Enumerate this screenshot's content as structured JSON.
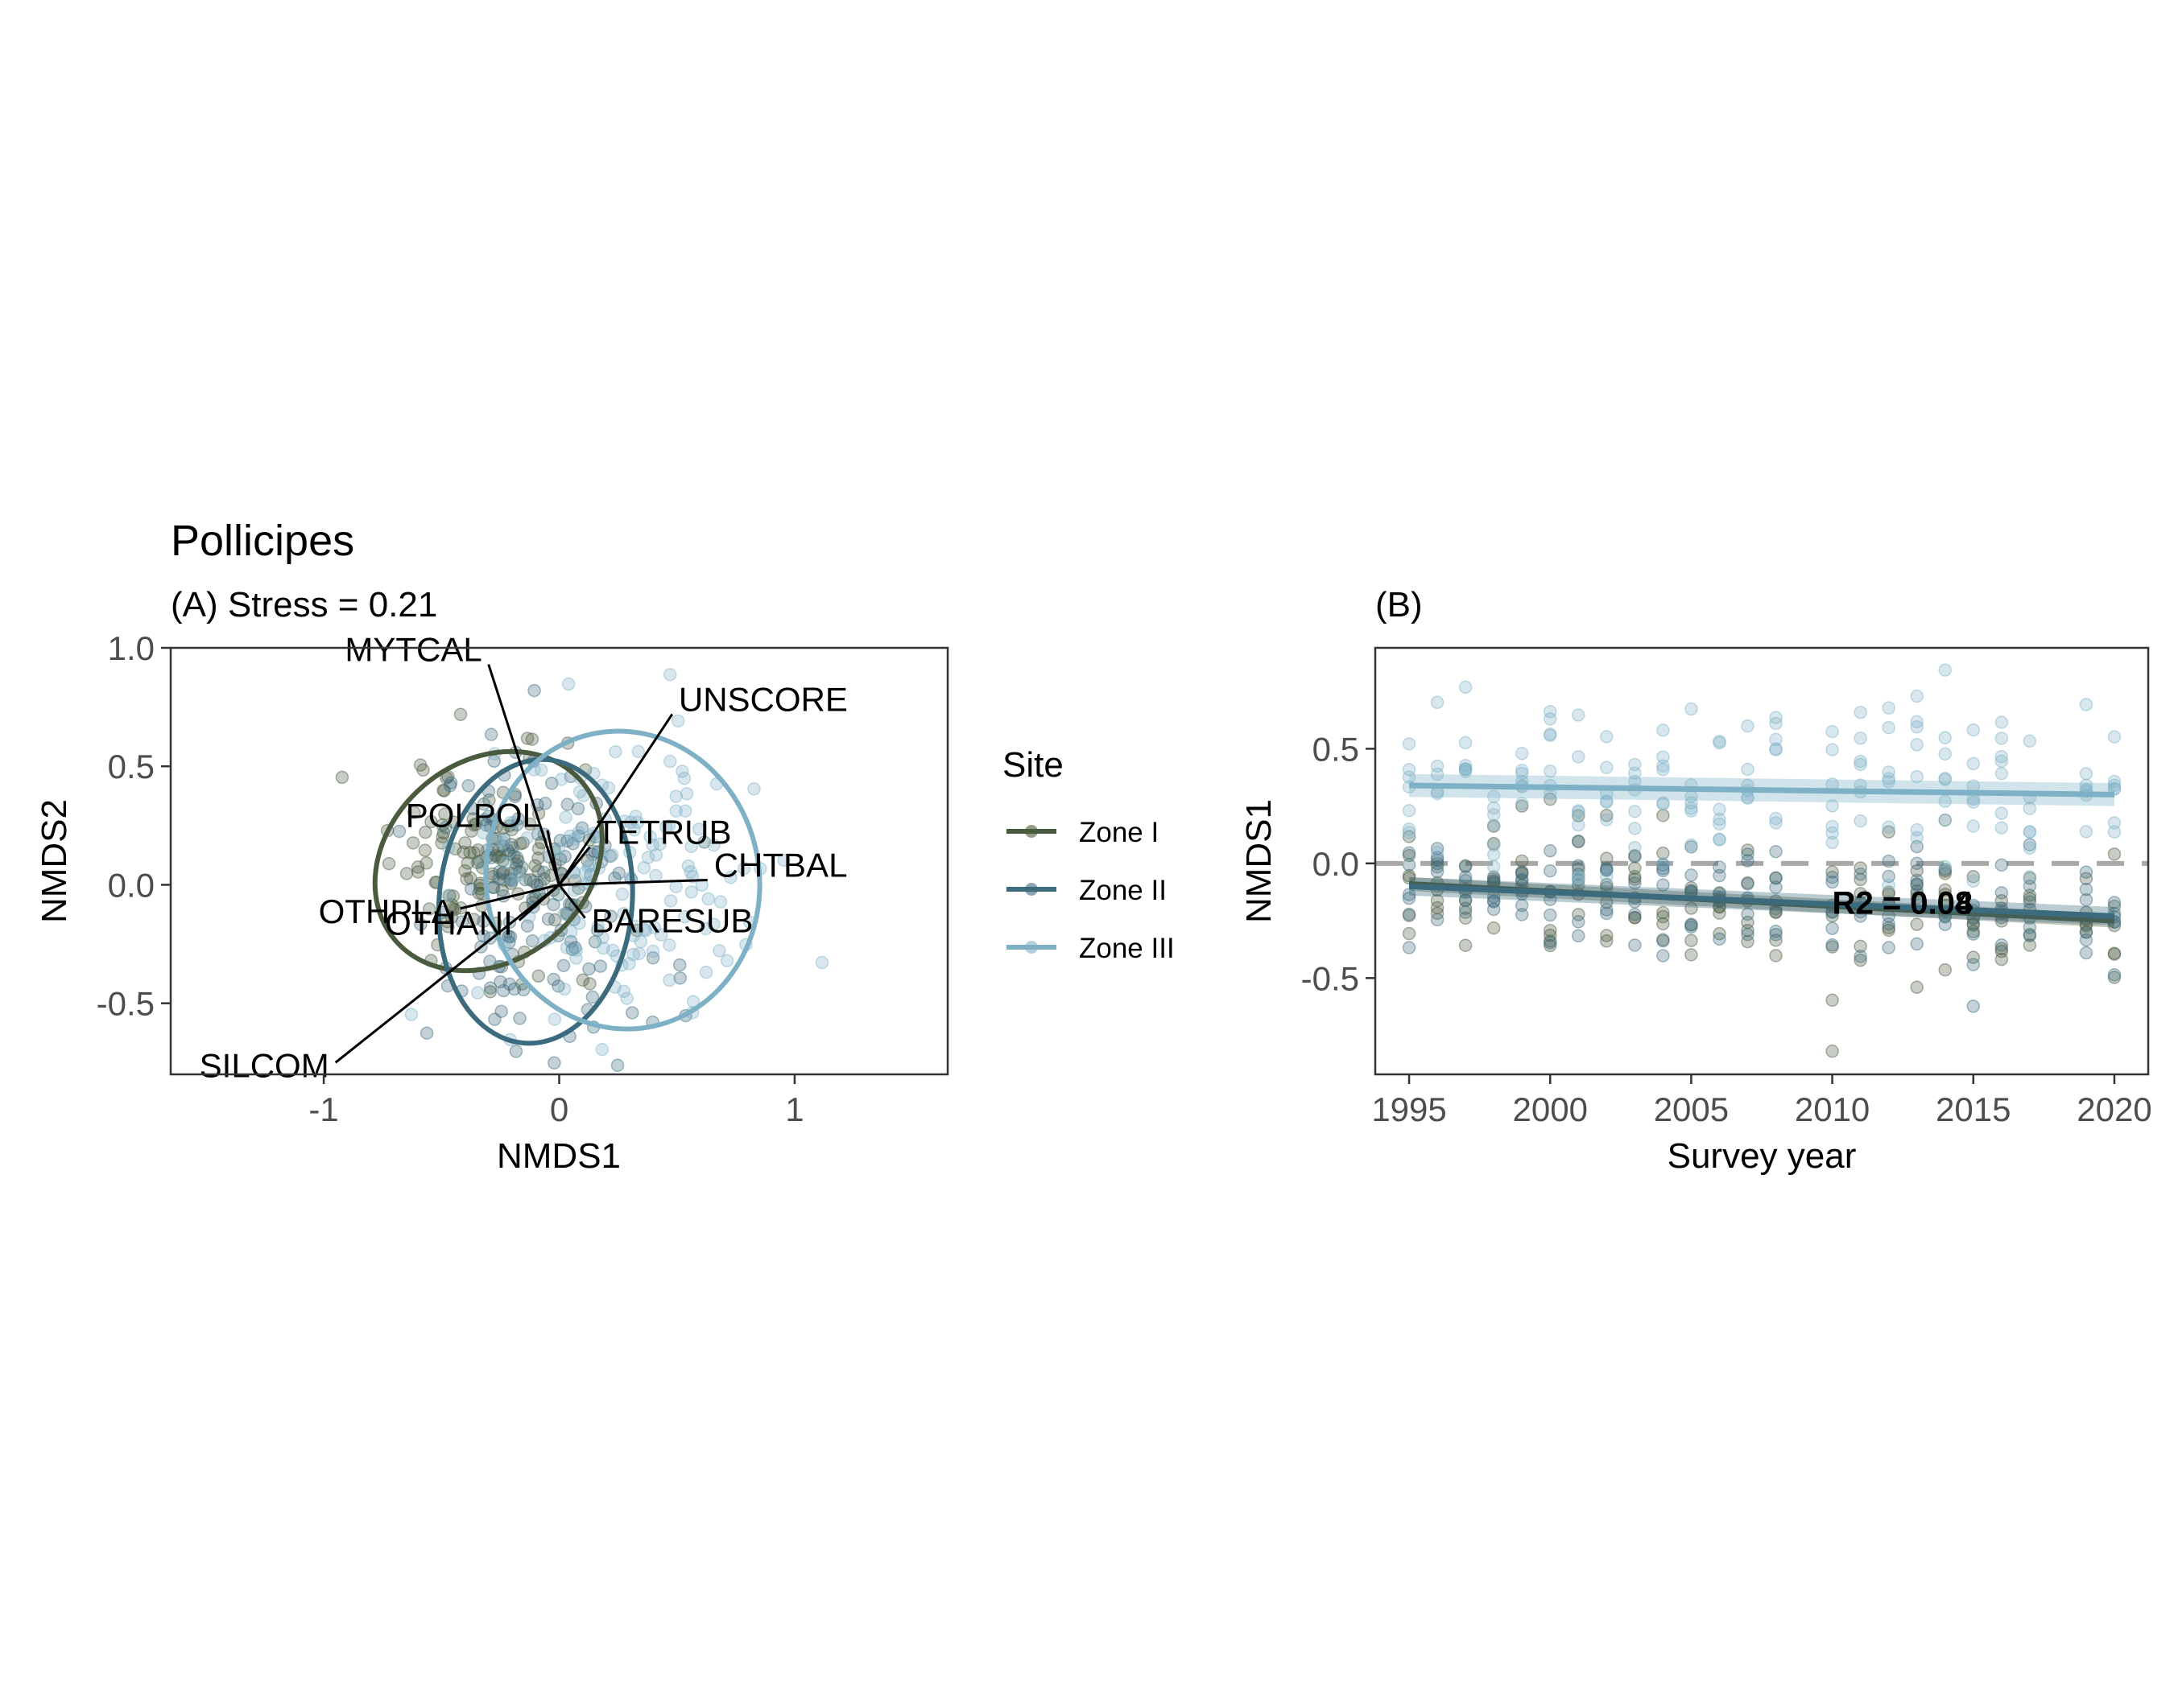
{
  "figure": {
    "title": "Pollicipes",
    "legend": {
      "title": "Site",
      "entries": [
        {
          "label": "Zone I",
          "color": "#4a5a3e"
        },
        {
          "label": "Zone II",
          "color": "#3c6b7e"
        },
        {
          "label": "Zone III",
          "color": "#7fb1c6"
        }
      ]
    }
  },
  "chart_data": [
    {
      "type": "scatter",
      "subtitle": "(A) Stress = 0.21",
      "xlabel": "NMDS1",
      "ylabel": "NMDS2",
      "xlim": [
        -1.65,
        1.65
      ],
      "ylim": [
        -0.8,
        1.0
      ],
      "xticks": [
        -1,
        0,
        1
      ],
      "yticks": [
        -0.5,
        0.0,
        0.5,
        1.0
      ],
      "ytick_labels": [
        "-0.5",
        "0.0",
        "0.5",
        "1.0"
      ],
      "grid": false,
      "legend": "right",
      "ellipses": [
        {
          "name": "Zone I",
          "center": [
            -0.3,
            0.1
          ],
          "rx": 0.52,
          "ry": 0.42,
          "angle": -40
        },
        {
          "name": "Zone II",
          "center": [
            -0.1,
            -0.07
          ],
          "rx": 0.41,
          "ry": 0.6,
          "angle": 5
        },
        {
          "name": "Zone III",
          "center": [
            0.27,
            0.02
          ],
          "rx": 0.58,
          "ry": 0.63,
          "angle": -10
        }
      ],
      "vectors": [
        {
          "label": "MYTCAL",
          "x": -0.3,
          "y": 0.93
        },
        {
          "label": "UNSCORE",
          "x": 0.48,
          "y": 0.72
        },
        {
          "label": "POLPOL",
          "x": -0.05,
          "y": 0.23
        },
        {
          "label": "TETRUB",
          "x": 0.13,
          "y": 0.16
        },
        {
          "label": "CHTBAL",
          "x": 0.63,
          "y": 0.02
        },
        {
          "label": "OTHPLA",
          "x": -0.42,
          "y": -0.1
        },
        {
          "label": "OTHANI",
          "x": -0.17,
          "y": -0.15
        },
        {
          "label": "BARESUB",
          "x": 0.11,
          "y": -0.14
        },
        {
          "label": "SILCOM",
          "x": -0.95,
          "y": -0.75
        }
      ],
      "points": {
        "Zone I": {
          "center": [
            -0.3,
            0.1
          ],
          "spread": [
            0.22,
            0.22
          ],
          "n": 140
        },
        "Zone II": {
          "center": [
            -0.1,
            -0.07
          ],
          "spread": [
            0.2,
            0.3
          ],
          "n": 140
        },
        "Zone III": {
          "center": [
            0.27,
            0.02
          ],
          "spread": [
            0.3,
            0.3
          ],
          "n": 140
        }
      }
    },
    {
      "type": "scatter",
      "subtitle": "(B)",
      "xlabel": "Survey year",
      "ylabel": "NMDS1",
      "xlim": [
        1993.8,
        2021.2
      ],
      "ylim": [
        -0.92,
        0.94
      ],
      "xticks": [
        1995,
        2000,
        2005,
        2010,
        2015,
        2020
      ],
      "yticks": [
        -0.5,
        0.0,
        0.5
      ],
      "ytick_labels": [
        "-0.5",
        "0.0",
        "0.5"
      ],
      "grid": false,
      "reference_line_y": 0,
      "years": [
        1995,
        1996,
        1997,
        1998,
        1999,
        2000,
        2001,
        2002,
        2003,
        2004,
        2005,
        2006,
        2007,
        2008,
        2010,
        2011,
        2012,
        2013,
        2014,
        2015,
        2016,
        2017,
        2019,
        2020
      ],
      "trends": [
        {
          "name": "Zone I",
          "x": [
            1995,
            2020
          ],
          "y": [
            -0.09,
            -0.25
          ],
          "ci": 0.03
        },
        {
          "name": "Zone II",
          "x": [
            1995,
            2020
          ],
          "y": [
            -0.1,
            -0.23
          ],
          "ci": 0.04
        },
        {
          "name": "Zone III",
          "x": [
            1995,
            2020
          ],
          "y": [
            0.34,
            0.3
          ],
          "ci": 0.05
        }
      ],
      "points": {
        "Zone I": {
          "mean_start": -0.09,
          "mean_end": -0.25,
          "sd": 0.15,
          "n_per_year": 6
        },
        "Zone II": {
          "mean_start": -0.1,
          "mean_end": -0.23,
          "sd": 0.13,
          "n_per_year": 6
        },
        "Zone III": {
          "mean_start": 0.34,
          "mean_end": 0.3,
          "sd": 0.2,
          "n_per_year": 7
        }
      },
      "annotations": [
        {
          "text": "R2 = 0.04",
          "x": 2010,
          "y": -0.17
        },
        {
          "text": "R2 = 0.08",
          "x": 2010,
          "y": -0.17
        }
      ]
    }
  ]
}
